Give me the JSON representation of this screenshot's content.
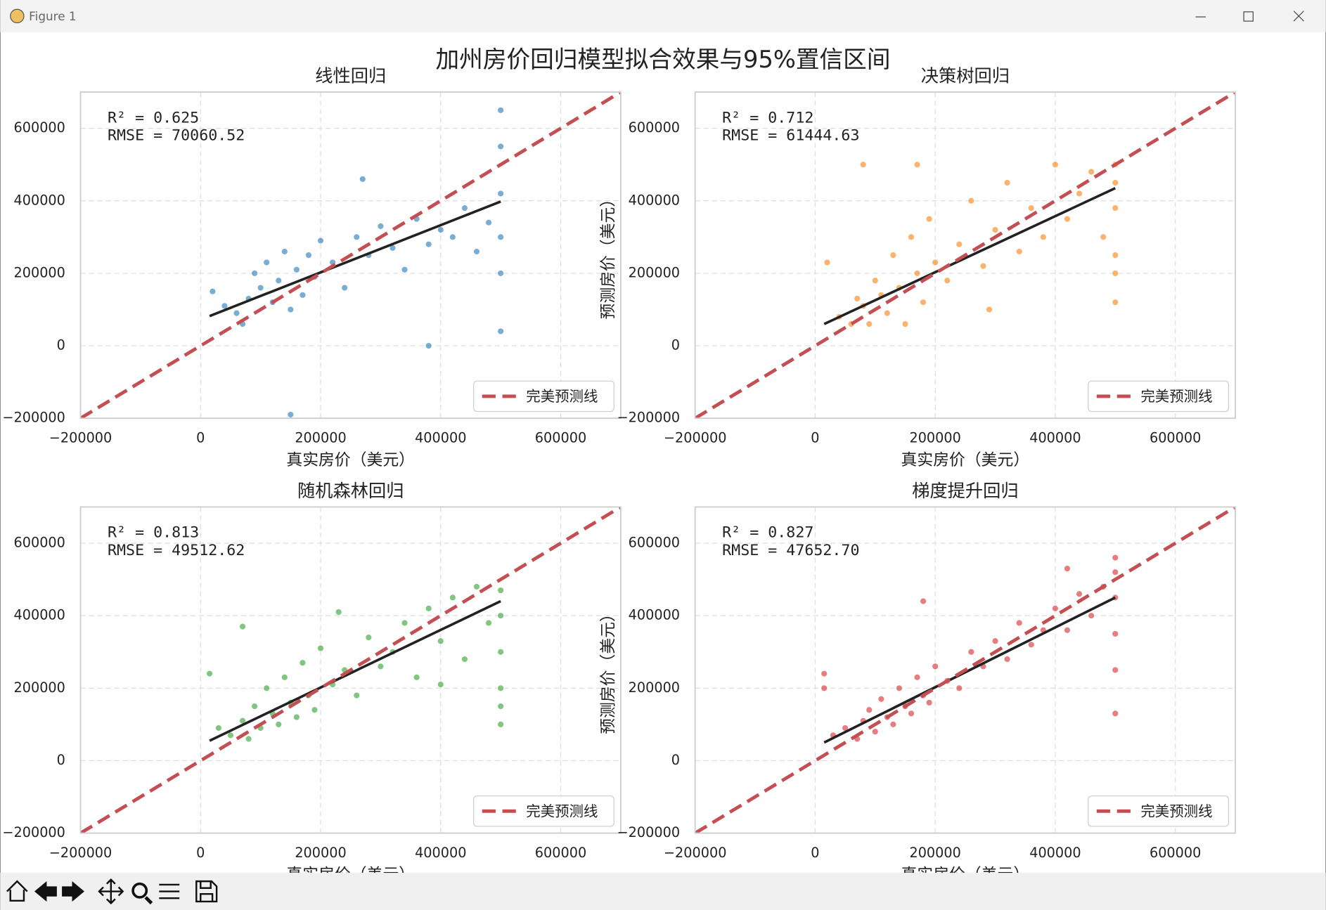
{
  "window": {
    "title": "Figure 1"
  },
  "suptitle": "加州房价回归模型拟合效果与95%置信区间",
  "chart_data": [
    {
      "type": "scatter",
      "title": "线性回归",
      "xlabel": "真实房价（美元）",
      "annotations": [
        "R² = 0.625",
        "RMSE = 70060.52"
      ],
      "xlim": [
        -200000,
        700000
      ],
      "ylim": [
        -200000,
        700000
      ],
      "xticks": [
        {
          "value": -200000,
          "label": "−200000"
        },
        0,
        200000,
        400000,
        600000
      ],
      "yticks": [
        {
          "value": -200000,
          "label": "−200000"
        },
        0,
        200000,
        400000,
        600000
      ],
      "grid": true,
      "legend": "lower right",
      "series": [
        {
          "color": "#1f77b4",
          "x": [
            20000,
            40000,
            60000,
            70000,
            80000,
            90000,
            100000,
            110000,
            120000,
            130000,
            140000,
            150000,
            160000,
            170000,
            180000,
            190000,
            200000,
            220000,
            240000,
            260000,
            280000,
            300000,
            320000,
            340000,
            360000,
            380000,
            400000,
            420000,
            440000,
            460000,
            480000,
            500000,
            500000,
            500000,
            500000,
            500000,
            500000,
            150000,
            270000,
            380000
          ],
          "values": [
            150000,
            110000,
            90000,
            60000,
            130000,
            200000,
            160000,
            230000,
            120000,
            180000,
            260000,
            100000,
            210000,
            140000,
            250000,
            190000,
            290000,
            230000,
            160000,
            300000,
            250000,
            330000,
            270000,
            210000,
            350000,
            280000,
            320000,
            300000,
            380000,
            260000,
            340000,
            200000,
            300000,
            420000,
            550000,
            650000,
            40000,
            -190000,
            460000,
            0
          ]
        },
        {
          "type": "line",
          "color": "#222222",
          "x": [
            15000,
            500000
          ],
          "values": [
            82000,
            398000
          ]
        },
        {
          "type": "line",
          "name": "完美预测线",
          "color": "#c44e52",
          "dashed": true,
          "x": [
            -200000,
            700000
          ],
          "values": [
            -200000,
            700000
          ]
        }
      ]
    },
    {
      "type": "scatter",
      "title": "决策树回归",
      "xlabel": "真实房价（美元）",
      "ylabel": "预测房价（美元）",
      "annotations": [
        "R² = 0.712",
        "RMSE = 61444.63"
      ],
      "xlim": [
        -200000,
        700000
      ],
      "ylim": [
        -200000,
        700000
      ],
      "xticks": [
        {
          "value": -200000,
          "label": "−200000"
        },
        0,
        200000,
        400000,
        600000
      ],
      "yticks": [
        {
          "value": -200000,
          "label": "−200000"
        },
        0,
        200000,
        400000,
        600000
      ],
      "grid": true,
      "legend": "lower right",
      "series": [
        {
          "color": "#ff7f0e",
          "x": [
            20000,
            40000,
            60000,
            70000,
            80000,
            90000,
            100000,
            110000,
            120000,
            130000,
            140000,
            150000,
            160000,
            170000,
            180000,
            190000,
            200000,
            220000,
            240000,
            260000,
            280000,
            300000,
            320000,
            340000,
            360000,
            380000,
            400000,
            420000,
            440000,
            460000,
            480000,
            500000,
            500000,
            500000,
            500000,
            500000,
            500000,
            80000,
            170000,
            290000
          ],
          "values": [
            230000,
            80000,
            60000,
            130000,
            110000,
            60000,
            180000,
            140000,
            90000,
            250000,
            160000,
            60000,
            300000,
            200000,
            120000,
            350000,
            230000,
            180000,
            280000,
            400000,
            220000,
            320000,
            450000,
            260000,
            380000,
            300000,
            500000,
            350000,
            420000,
            480000,
            300000,
            120000,
            250000,
            380000,
            450000,
            500000,
            200000,
            500000,
            500000,
            100000
          ]
        },
        {
          "type": "line",
          "color": "#222222",
          "x": [
            15000,
            500000
          ],
          "values": [
            60000,
            435000
          ]
        },
        {
          "type": "line",
          "name": "完美预测线",
          "color": "#c44e52",
          "dashed": true,
          "x": [
            -200000,
            700000
          ],
          "values": [
            -200000,
            700000
          ]
        }
      ]
    },
    {
      "type": "scatter",
      "title": "随机森林回归",
      "xlabel": "真实房价（美元）",
      "annotations": [
        "R² = 0.813",
        "RMSE = 49512.62"
      ],
      "xlim": [
        -200000,
        700000
      ],
      "ylim": [
        -200000,
        700000
      ],
      "xticks": [
        {
          "value": -200000,
          "label": "−200000"
        },
        0,
        200000,
        400000,
        600000
      ],
      "yticks": [
        {
          "value": -200000,
          "label": "−200000"
        },
        0,
        200000,
        400000,
        600000
      ],
      "grid": true,
      "legend": "lower right",
      "series": [
        {
          "color": "#2ca02c",
          "x": [
            15000,
            30000,
            50000,
            70000,
            80000,
            90000,
            100000,
            110000,
            120000,
            130000,
            140000,
            150000,
            160000,
            170000,
            180000,
            190000,
            200000,
            220000,
            240000,
            260000,
            280000,
            300000,
            320000,
            340000,
            360000,
            380000,
            400000,
            420000,
            440000,
            460000,
            480000,
            500000,
            500000,
            500000,
            500000,
            500000,
            500000,
            70000,
            230000,
            400000
          ],
          "values": [
            240000,
            90000,
            70000,
            110000,
            60000,
            150000,
            90000,
            200000,
            130000,
            100000,
            230000,
            160000,
            120000,
            270000,
            180000,
            140000,
            310000,
            210000,
            250000,
            180000,
            340000,
            260000,
            300000,
            380000,
            230000,
            420000,
            330000,
            450000,
            280000,
            480000,
            380000,
            100000,
            200000,
            300000,
            400000,
            470000,
            150000,
            370000,
            410000,
            210000
          ]
        },
        {
          "type": "line",
          "color": "#222222",
          "x": [
            15000,
            500000
          ],
          "values": [
            55000,
            440000
          ]
        },
        {
          "type": "line",
          "name": "完美预测线",
          "color": "#c44e52",
          "dashed": true,
          "x": [
            -200000,
            700000
          ],
          "values": [
            -200000,
            700000
          ]
        }
      ]
    },
    {
      "type": "scatter",
      "title": "梯度提升回归",
      "xlabel": "真实房价（美元）",
      "ylabel": "预测房价（美元）",
      "annotations": [
        "R² = 0.827",
        "RMSE = 47652.70"
      ],
      "xlim": [
        -200000,
        700000
      ],
      "ylim": [
        -200000,
        700000
      ],
      "xticks": [
        {
          "value": -200000,
          "label": "−200000"
        },
        0,
        200000,
        400000,
        600000
      ],
      "yticks": [
        {
          "value": -200000,
          "label": "−200000"
        },
        0,
        200000,
        400000,
        600000
      ],
      "grid": true,
      "legend": "lower right",
      "series": [
        {
          "color": "#d62728",
          "x": [
            15000,
            30000,
            50000,
            70000,
            80000,
            90000,
            100000,
            110000,
            120000,
            130000,
            140000,
            150000,
            160000,
            170000,
            180000,
            190000,
            200000,
            220000,
            240000,
            260000,
            280000,
            300000,
            320000,
            340000,
            360000,
            380000,
            400000,
            420000,
            440000,
            460000,
            480000,
            500000,
            500000,
            500000,
            500000,
            500000,
            500000,
            15000,
            180000,
            420000
          ],
          "values": [
            200000,
            70000,
            90000,
            60000,
            110000,
            140000,
            80000,
            170000,
            120000,
            100000,
            200000,
            150000,
            130000,
            230000,
            180000,
            160000,
            260000,
            220000,
            200000,
            300000,
            260000,
            330000,
            280000,
            380000,
            320000,
            360000,
            420000,
            360000,
            460000,
            400000,
            480000,
            130000,
            250000,
            350000,
            450000,
            520000,
            560000,
            240000,
            440000,
            530000
          ]
        },
        {
          "type": "line",
          "color": "#222222",
          "x": [
            15000,
            500000
          ],
          "values": [
            50000,
            450000
          ]
        },
        {
          "type": "line",
          "name": "完美预测线",
          "color": "#c44e52",
          "dashed": true,
          "x": [
            -200000,
            700000
          ],
          "values": [
            -200000,
            700000
          ]
        }
      ]
    }
  ]
}
